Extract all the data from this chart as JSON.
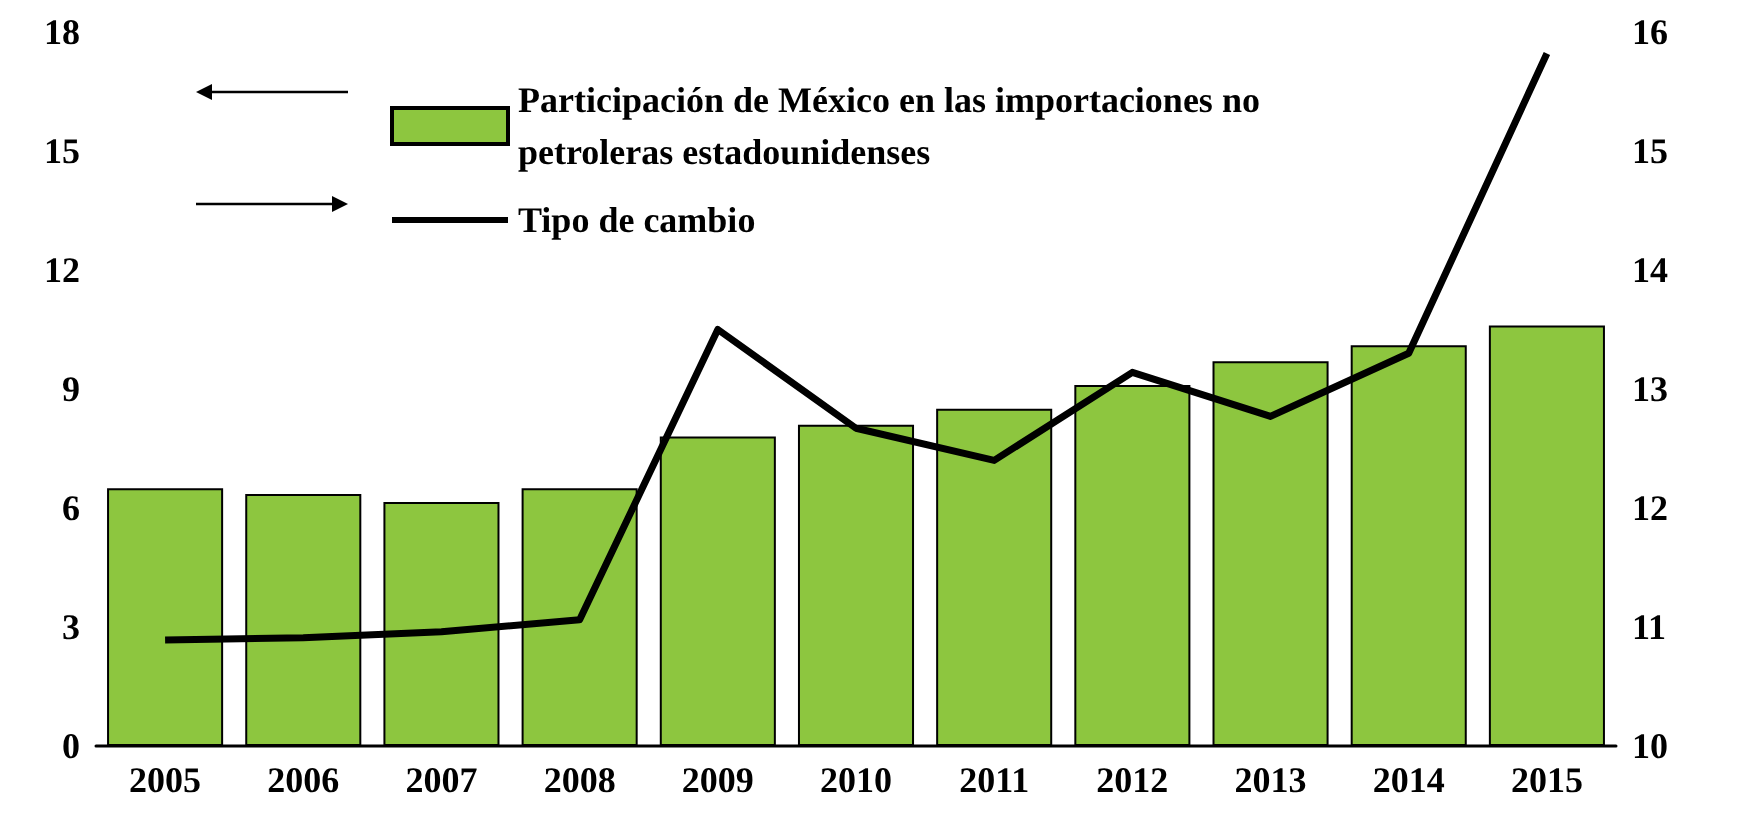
{
  "chart_data": {
    "type": "bar",
    "categories": [
      "2005",
      "2006",
      "2007",
      "2008",
      "2009",
      "2010",
      "2011",
      "2012",
      "2013",
      "2014",
      "2015"
    ],
    "series": [
      {
        "name": "Participación de México en las importaciones no petroleras estadounidenses",
        "color": "#8dc63f",
        "values": [
          6.5,
          6.35,
          6.15,
          6.5,
          7.8,
          8.1,
          8.5,
          9.1,
          9.7,
          10.1,
          10.6
        ]
      },
      {
        "name": "Tipo de cambio",
        "type": "line",
        "axis": "y2",
        "color": "#000000",
        "values": [
          10.89,
          10.91,
          10.96,
          11.06,
          13.5,
          12.67,
          12.4,
          13.14,
          12.77,
          13.3,
          15.82
        ]
      }
    ],
    "ylim": [
      0,
      18
    ],
    "yticks": [
      0,
      3,
      6,
      9,
      12,
      15,
      18
    ],
    "y2lim": [
      10,
      16
    ],
    "y2ticks": [
      10,
      11,
      12,
      13,
      14,
      15,
      16
    ],
    "legend": "top left",
    "grid": false
  }
}
